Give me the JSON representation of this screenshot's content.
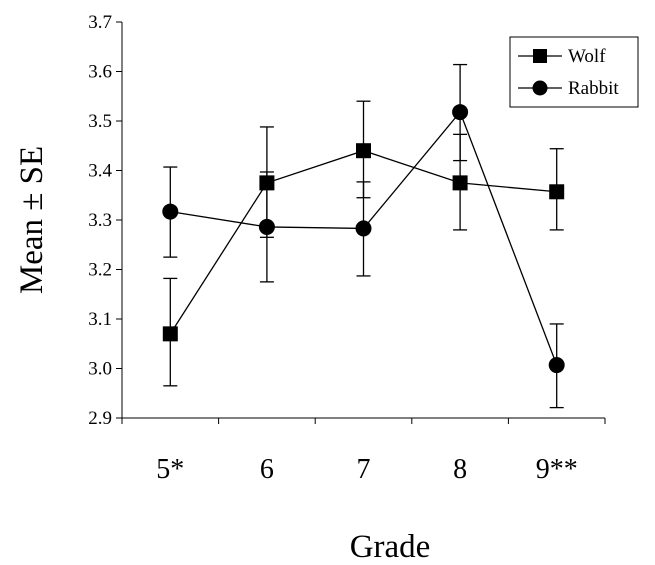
{
  "chart_data": {
    "type": "line",
    "title": "",
    "xlabel": "Grade",
    "ylabel": "Mean ± SE",
    "categories": [
      "5*",
      "6",
      "7",
      "8",
      "9**"
    ],
    "ylim": [
      2.9,
      3.7
    ],
    "yticks": [
      "2.9",
      "3.0",
      "3.1",
      "3.2",
      "3.3",
      "3.4",
      "3.5",
      "3.6",
      "3.7"
    ],
    "grid": false,
    "legend_position": "top-right",
    "series": [
      {
        "name": "Wolf",
        "marker": "square",
        "values": [
          3.07,
          3.375,
          3.44,
          3.375,
          3.357
        ],
        "lower": [
          2.965,
          3.265,
          3.345,
          3.28,
          3.28
        ],
        "upper": [
          3.182,
          3.488,
          3.54,
          3.473,
          3.444
        ]
      },
      {
        "name": "Rabbit",
        "marker": "circle",
        "values": [
          3.317,
          3.286,
          3.283,
          3.518,
          3.007
        ],
        "lower": [
          3.225,
          3.175,
          3.187,
          3.42,
          2.921
        ],
        "upper": [
          3.407,
          3.397,
          3.377,
          3.614,
          3.09
        ]
      }
    ],
    "colors": {
      "line": "#000000",
      "background": "#ffffff"
    }
  }
}
